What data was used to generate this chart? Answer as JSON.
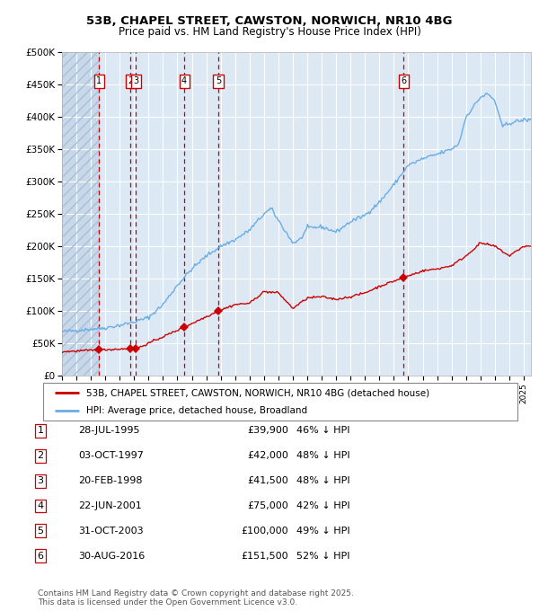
{
  "title_line1": "53B, CHAPEL STREET, CAWSTON, NORWICH, NR10 4BG",
  "title_line2": "Price paid vs. HM Land Registry's House Price Index (HPI)",
  "legend_label_red": "53B, CHAPEL STREET, CAWSTON, NORWICH, NR10 4BG (detached house)",
  "legend_label_blue": "HPI: Average price, detached house, Broadland",
  "footer_line1": "Contains HM Land Registry data © Crown copyright and database right 2025.",
  "footer_line2": "This data is licensed under the Open Government Licence v3.0.",
  "sale_points": [
    {
      "num": 1,
      "date": "28-JUL-1995",
      "price": 39900,
      "pct": "46% ↓ HPI",
      "year": 1995.57
    },
    {
      "num": 2,
      "date": "03-OCT-1997",
      "price": 42000,
      "pct": "48% ↓ HPI",
      "year": 1997.75
    },
    {
      "num": 3,
      "date": "20-FEB-1998",
      "price": 41500,
      "pct": "48% ↓ HPI",
      "year": 1998.13
    },
    {
      "num": 4,
      "date": "22-JUN-2001",
      "price": 75000,
      "pct": "42% ↓ HPI",
      "year": 2001.47
    },
    {
      "num": 5,
      "date": "31-OCT-2003",
      "price": 100000,
      "pct": "49% ↓ HPI",
      "year": 2003.83
    },
    {
      "num": 6,
      "date": "30-AUG-2016",
      "price": 151500,
      "pct": "52% ↓ HPI",
      "year": 2016.66
    }
  ],
  "hpi_color": "#6aade4",
  "price_color": "#cc0000",
  "marker_color": "#cc0000",
  "vline_color": "#cc0000",
  "bg_color": "#dce9f5",
  "grid_color": "#ffffff",
  "ylim": [
    0,
    500000
  ],
  "yticks": [
    0,
    50000,
    100000,
    150000,
    200000,
    250000,
    300000,
    350000,
    400000,
    450000,
    500000
  ],
  "xlim_start": 1993.0,
  "xlim_end": 2025.5,
  "hpi_key_years": [
    1993,
    1994,
    1995,
    1996,
    1997,
    1998,
    1999,
    2000,
    2001,
    2002,
    2003,
    2004,
    2005,
    2006,
    2007,
    2007.5,
    2008,
    2009,
    2009.5,
    2010,
    2011,
    2012,
    2013,
    2014,
    2015,
    2016,
    2017,
    2018,
    2019,
    2020,
    2020.5,
    2021,
    2022,
    2022.5,
    2023,
    2023.5,
    2024,
    2025
  ],
  "hpi_key_prices": [
    68000,
    70000,
    72000,
    74000,
    78000,
    83000,
    90000,
    110000,
    140000,
    165000,
    185000,
    200000,
    210000,
    225000,
    250000,
    258000,
    240000,
    205000,
    210000,
    228000,
    230000,
    222000,
    238000,
    248000,
    268000,
    295000,
    325000,
    335000,
    342000,
    350000,
    358000,
    400000,
    430000,
    435000,
    425000,
    385000,
    390000,
    395000
  ],
  "red_key_years": [
    1993,
    1995.57,
    1997.75,
    1998.13,
    2001.47,
    2003.83,
    2005,
    2006,
    2007,
    2008,
    2009,
    2010,
    2011,
    2012,
    2013,
    2014,
    2015,
    2016.66,
    2018,
    2019,
    2020,
    2021,
    2022,
    2023,
    2024,
    2025
  ],
  "red_key_prices": [
    37000,
    39900,
    42000,
    41500,
    75000,
    100000,
    110000,
    112000,
    130000,
    128000,
    104000,
    120000,
    122000,
    118000,
    122000,
    128000,
    138000,
    151500,
    162000,
    165000,
    170000,
    185000,
    205000,
    200000,
    185000,
    200000
  ]
}
